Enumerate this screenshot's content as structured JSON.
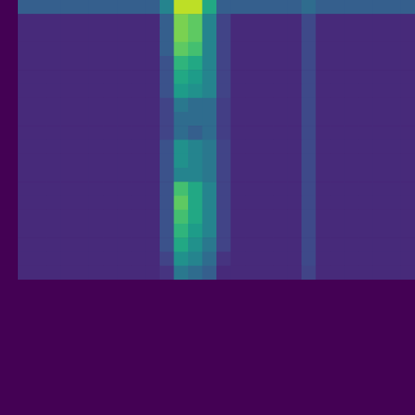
{
  "chart_data": {
    "type": "heatmap",
    "tick_labels": false,
    "zlim": [
      0,
      1
    ],
    "values": [
      [
        0.3,
        0.3,
        0.3,
        0.3,
        0.3,
        0.3,
        0.3,
        0.3,
        0.3,
        0.3,
        0.45,
        0.9,
        0.9,
        0.6,
        0.3,
        0.3,
        0.3,
        0.3,
        0.3,
        0.3,
        0.35,
        0.3,
        0.3,
        0.3,
        0.3,
        0.3,
        0.3,
        0.3
      ],
      [
        0.12,
        0.12,
        0.12,
        0.12,
        0.12,
        0.12,
        0.12,
        0.12,
        0.12,
        0.12,
        0.3,
        0.8,
        0.75,
        0.45,
        0.2,
        0.12,
        0.12,
        0.12,
        0.12,
        0.12,
        0.22,
        0.12,
        0.12,
        0.12,
        0.12,
        0.12,
        0.12,
        0.12
      ],
      [
        0.12,
        0.12,
        0.12,
        0.12,
        0.12,
        0.12,
        0.12,
        0.12,
        0.12,
        0.12,
        0.3,
        0.8,
        0.75,
        0.45,
        0.2,
        0.12,
        0.12,
        0.12,
        0.12,
        0.12,
        0.22,
        0.12,
        0.12,
        0.12,
        0.12,
        0.12,
        0.12,
        0.12
      ],
      [
        0.12,
        0.12,
        0.12,
        0.12,
        0.12,
        0.12,
        0.12,
        0.12,
        0.12,
        0.12,
        0.3,
        0.75,
        0.7,
        0.45,
        0.2,
        0.12,
        0.12,
        0.12,
        0.12,
        0.12,
        0.22,
        0.12,
        0.12,
        0.12,
        0.12,
        0.12,
        0.12,
        0.12
      ],
      [
        0.12,
        0.12,
        0.12,
        0.12,
        0.12,
        0.12,
        0.12,
        0.12,
        0.12,
        0.12,
        0.25,
        0.65,
        0.6,
        0.45,
        0.2,
        0.12,
        0.12,
        0.12,
        0.12,
        0.12,
        0.22,
        0.12,
        0.12,
        0.12,
        0.12,
        0.12,
        0.12,
        0.12
      ],
      [
        0.12,
        0.12,
        0.12,
        0.12,
        0.12,
        0.12,
        0.12,
        0.12,
        0.12,
        0.12,
        0.25,
        0.6,
        0.55,
        0.45,
        0.2,
        0.12,
        0.12,
        0.12,
        0.12,
        0.12,
        0.22,
        0.12,
        0.12,
        0.12,
        0.12,
        0.12,
        0.12,
        0.12
      ],
      [
        0.12,
        0.12,
        0.12,
        0.12,
        0.12,
        0.12,
        0.12,
        0.12,
        0.12,
        0.12,
        0.25,
        0.55,
        0.5,
        0.45,
        0.2,
        0.12,
        0.12,
        0.12,
        0.12,
        0.12,
        0.22,
        0.12,
        0.12,
        0.12,
        0.12,
        0.12,
        0.12,
        0.12
      ],
      [
        0.12,
        0.12,
        0.12,
        0.12,
        0.12,
        0.12,
        0.12,
        0.12,
        0.12,
        0.12,
        0.2,
        0.4,
        0.35,
        0.35,
        0.18,
        0.12,
        0.12,
        0.12,
        0.12,
        0.12,
        0.22,
        0.12,
        0.12,
        0.12,
        0.12,
        0.12,
        0.12,
        0.12
      ],
      [
        0.12,
        0.12,
        0.12,
        0.12,
        0.12,
        0.12,
        0.12,
        0.12,
        0.12,
        0.12,
        0.2,
        0.35,
        0.35,
        0.35,
        0.18,
        0.12,
        0.12,
        0.12,
        0.12,
        0.12,
        0.22,
        0.12,
        0.12,
        0.12,
        0.12,
        0.12,
        0.12,
        0.12
      ],
      [
        0.12,
        0.12,
        0.12,
        0.12,
        0.12,
        0.12,
        0.12,
        0.12,
        0.12,
        0.12,
        0.2,
        0.35,
        0.3,
        0.35,
        0.18,
        0.12,
        0.12,
        0.12,
        0.12,
        0.12,
        0.22,
        0.12,
        0.12,
        0.12,
        0.12,
        0.12,
        0.12,
        0.12
      ],
      [
        0.12,
        0.12,
        0.12,
        0.12,
        0.12,
        0.12,
        0.12,
        0.12,
        0.12,
        0.12,
        0.25,
        0.5,
        0.45,
        0.4,
        0.2,
        0.12,
        0.12,
        0.12,
        0.12,
        0.12,
        0.22,
        0.12,
        0.12,
        0.12,
        0.12,
        0.12,
        0.12,
        0.12
      ],
      [
        0.12,
        0.12,
        0.12,
        0.12,
        0.12,
        0.12,
        0.12,
        0.12,
        0.12,
        0.12,
        0.25,
        0.5,
        0.45,
        0.4,
        0.2,
        0.12,
        0.12,
        0.12,
        0.12,
        0.12,
        0.22,
        0.12,
        0.12,
        0.12,
        0.12,
        0.12,
        0.12,
        0.12
      ],
      [
        0.12,
        0.12,
        0.12,
        0.12,
        0.12,
        0.12,
        0.12,
        0.12,
        0.12,
        0.12,
        0.25,
        0.45,
        0.45,
        0.4,
        0.2,
        0.12,
        0.12,
        0.12,
        0.12,
        0.12,
        0.22,
        0.12,
        0.12,
        0.12,
        0.12,
        0.12,
        0.12,
        0.12
      ],
      [
        0.12,
        0.12,
        0.12,
        0.12,
        0.12,
        0.12,
        0.12,
        0.12,
        0.12,
        0.12,
        0.25,
        0.7,
        0.6,
        0.45,
        0.2,
        0.12,
        0.12,
        0.12,
        0.12,
        0.12,
        0.22,
        0.12,
        0.12,
        0.12,
        0.12,
        0.12,
        0.12,
        0.12
      ],
      [
        0.12,
        0.12,
        0.12,
        0.12,
        0.12,
        0.12,
        0.12,
        0.12,
        0.12,
        0.12,
        0.25,
        0.75,
        0.6,
        0.45,
        0.2,
        0.12,
        0.12,
        0.12,
        0.12,
        0.12,
        0.22,
        0.12,
        0.12,
        0.12,
        0.12,
        0.12,
        0.12,
        0.12
      ],
      [
        0.12,
        0.12,
        0.12,
        0.12,
        0.12,
        0.12,
        0.12,
        0.12,
        0.12,
        0.12,
        0.25,
        0.7,
        0.6,
        0.45,
        0.2,
        0.12,
        0.12,
        0.12,
        0.12,
        0.12,
        0.22,
        0.12,
        0.12,
        0.12,
        0.12,
        0.12,
        0.12,
        0.12
      ],
      [
        0.12,
        0.12,
        0.12,
        0.12,
        0.12,
        0.12,
        0.12,
        0.12,
        0.12,
        0.12,
        0.25,
        0.65,
        0.55,
        0.45,
        0.2,
        0.12,
        0.12,
        0.12,
        0.12,
        0.12,
        0.22,
        0.12,
        0.12,
        0.12,
        0.12,
        0.12,
        0.12,
        0.12
      ],
      [
        0.12,
        0.12,
        0.12,
        0.12,
        0.12,
        0.12,
        0.12,
        0.12,
        0.12,
        0.12,
        0.25,
        0.6,
        0.5,
        0.4,
        0.2,
        0.12,
        0.12,
        0.12,
        0.12,
        0.12,
        0.22,
        0.12,
        0.12,
        0.12,
        0.12,
        0.12,
        0.12,
        0.12
      ],
      [
        0.12,
        0.12,
        0.12,
        0.12,
        0.12,
        0.12,
        0.12,
        0.12,
        0.12,
        0.12,
        0.2,
        0.5,
        0.45,
        0.35,
        0.15,
        0.12,
        0.12,
        0.12,
        0.12,
        0.12,
        0.22,
        0.12,
        0.12,
        0.12,
        0.12,
        0.12,
        0.12,
        0.12
      ],
      [
        0.12,
        0.12,
        0.12,
        0.12,
        0.12,
        0.12,
        0.12,
        0.12,
        0.12,
        0.12,
        0.15,
        0.4,
        0.35,
        0.3,
        0.12,
        0.12,
        0.12,
        0.12,
        0.12,
        0.12,
        0.2,
        0.12,
        0.12,
        0.12,
        0.12,
        0.12,
        0.12,
        0.12
      ]
    ]
  }
}
